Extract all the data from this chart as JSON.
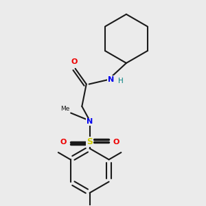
{
  "bg_color": "#ebebeb",
  "bond_color": "#1a1a1a",
  "atom_colors": {
    "N": "#0000ee",
    "O": "#ee0000",
    "S": "#cccc00",
    "H": "#008080",
    "C": "#1a1a1a"
  },
  "figsize": [
    3.0,
    3.0
  ],
  "dpi": 100
}
